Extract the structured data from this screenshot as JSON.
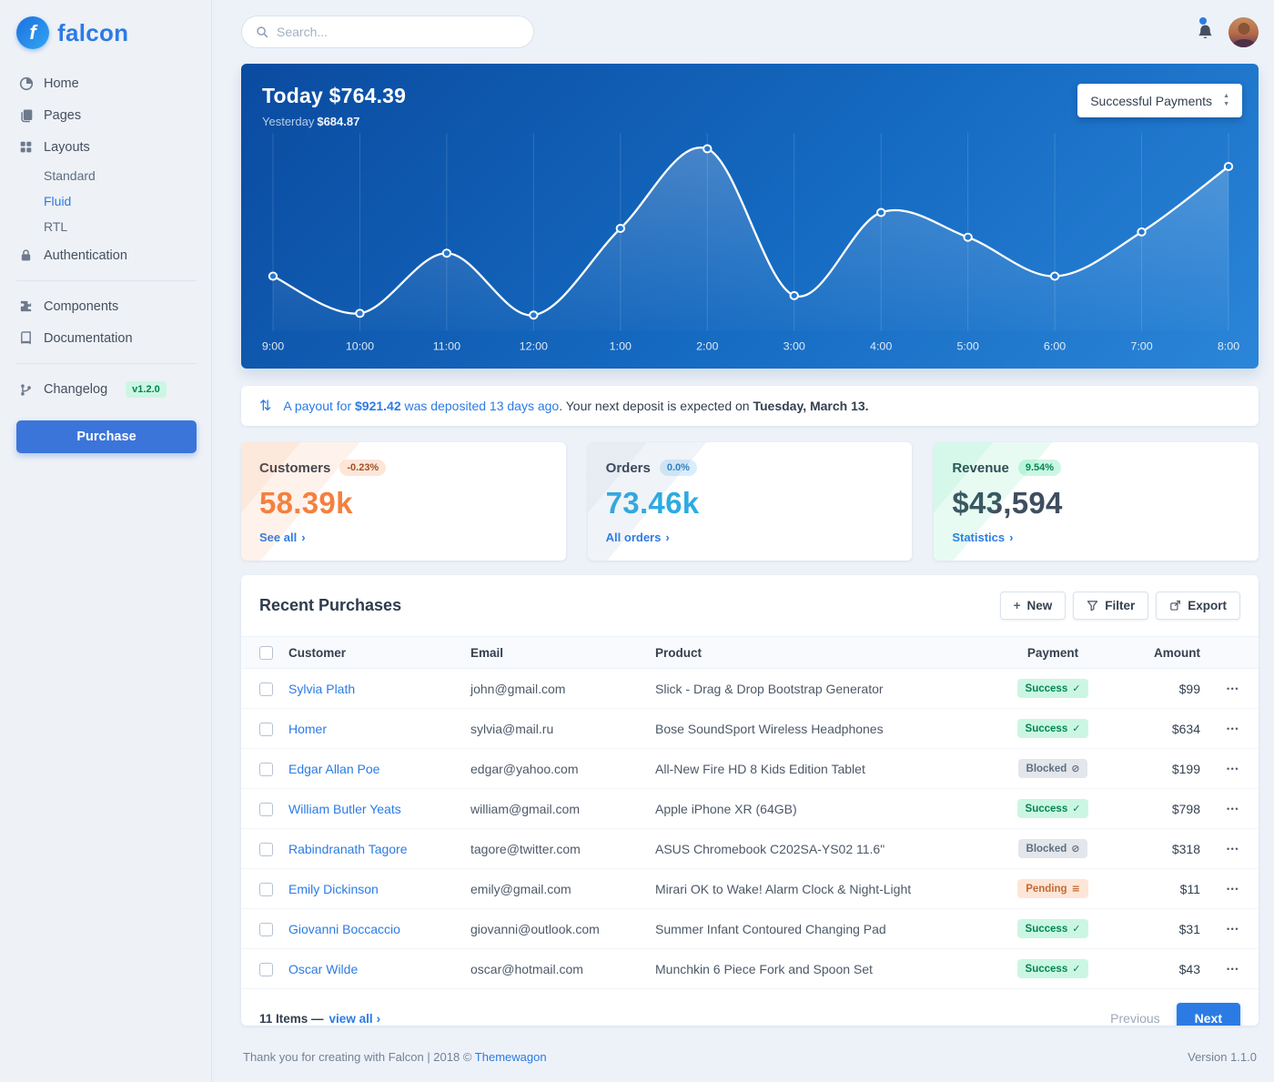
{
  "brand": {
    "name": "falcon"
  },
  "topbar": {
    "search_placeholder": "Search..."
  },
  "sidebar": {
    "home": "Home",
    "pages": "Pages",
    "layouts": "Layouts",
    "layouts_children": [
      "Standard",
      "Fluid",
      "RTL"
    ],
    "layouts_active_child": "Fluid",
    "authentication": "Authentication",
    "components": "Components",
    "documentation": "Documentation",
    "changelog": "Changelog",
    "version_badge": "v1.2.0",
    "purchase": "Purchase"
  },
  "chart_card": {
    "title": "Today $764.39",
    "yesterday_label": "Yesterday",
    "yesterday_value": "$684.87",
    "filter": "Successful Payments"
  },
  "chart_data": {
    "type": "line",
    "title": "Today $764.39",
    "subtitle": "Yesterday $684.87",
    "x": [
      "9:00",
      "10:00",
      "11:00",
      "12:00",
      "1:00",
      "2:00",
      "3:00",
      "4:00",
      "5:00",
      "6:00",
      "7:00",
      "8:00"
    ],
    "series": [
      {
        "name": "Successful Payments",
        "values": [
          25,
          4,
          38,
          3,
          52,
          97,
          14,
          61,
          47,
          25,
          50,
          87
        ]
      }
    ],
    "ylim": [
      0,
      100
    ],
    "grid": "vertical",
    "legend": "none",
    "line_color": "#ffffff"
  },
  "payout": {
    "link_prefix": "A payout for ",
    "amount": "$921.42",
    "link_suffix": " was deposited 13 days ago",
    "rest": ". Your next deposit is expected on ",
    "date": "Tuesday, March 13."
  },
  "stats": [
    {
      "title": "Customers",
      "badge": "-0.23%",
      "value": "58.39k",
      "link": "See all"
    },
    {
      "title": "Orders",
      "badge": "0.0%",
      "value": "73.46k",
      "link": "All orders"
    },
    {
      "title": "Revenue",
      "badge": "9.54%",
      "value": "$43,594",
      "link": "Statistics"
    }
  ],
  "purchases": {
    "title": "Recent Purchases",
    "new_label": "New",
    "filter_label": "Filter",
    "export_label": "Export",
    "columns": {
      "customer": "Customer",
      "email": "Email",
      "product": "Product",
      "payment": "Payment",
      "amount": "Amount"
    },
    "rows": [
      {
        "customer": "Sylvia Plath",
        "email": "john@gmail.com",
        "product": "Slick - Drag & Drop Bootstrap Generator",
        "payment": "Success",
        "status": "success",
        "amount": "$99"
      },
      {
        "customer": "Homer",
        "email": "sylvia@mail.ru",
        "product": "Bose SoundSport Wireless Headphones",
        "payment": "Success",
        "status": "success",
        "amount": "$634"
      },
      {
        "customer": "Edgar Allan Poe",
        "email": "edgar@yahoo.com",
        "product": "All-New Fire HD 8 Kids Edition Tablet",
        "payment": "Blocked",
        "status": "blocked",
        "amount": "$199"
      },
      {
        "customer": "William Butler Yeats",
        "email": "william@gmail.com",
        "product": "Apple iPhone XR (64GB)",
        "payment": "Success",
        "status": "success",
        "amount": "$798"
      },
      {
        "customer": "Rabindranath Tagore",
        "email": "tagore@twitter.com",
        "product": "ASUS Chromebook C202SA-YS02 11.6\"",
        "payment": "Blocked",
        "status": "blocked",
        "amount": "$318"
      },
      {
        "customer": "Emily Dickinson",
        "email": "emily@gmail.com",
        "product": "Mirari OK to Wake! Alarm Clock & Night-Light",
        "payment": "Pending",
        "status": "pending",
        "amount": "$11"
      },
      {
        "customer": "Giovanni Boccaccio",
        "email": "giovanni@outlook.com",
        "product": "Summer Infant Contoured Changing Pad",
        "payment": "Success",
        "status": "success",
        "amount": "$31"
      },
      {
        "customer": "Oscar Wilde",
        "email": "oscar@hotmail.com",
        "product": "Munchkin 6 Piece Fork and Spoon Set",
        "payment": "Success",
        "status": "success",
        "amount": "$43"
      }
    ],
    "items_text": "11 Items —",
    "view_all": "view all",
    "previous": "Previous",
    "next": "Next"
  },
  "footer": {
    "thanks": "Thank you for creating with Falcon | 2018 © ",
    "credit": "Themewagon",
    "version": "Version 1.1.0"
  },
  "icons": {
    "transfer": "⇅",
    "select_up": "▲",
    "select_down": "▼",
    "chevron_right": "›",
    "plus": "+",
    "ellipsis": "•••",
    "check": "✓",
    "ban": "⊘",
    "stream": "≡"
  },
  "colors": {
    "accent": "#2c7be5",
    "warning": "#f5803e",
    "info": "#27bcfd",
    "success": "#00864e",
    "chart_gradient_start": "#0a4ba0",
    "chart_gradient_end": "#2b85d8"
  }
}
